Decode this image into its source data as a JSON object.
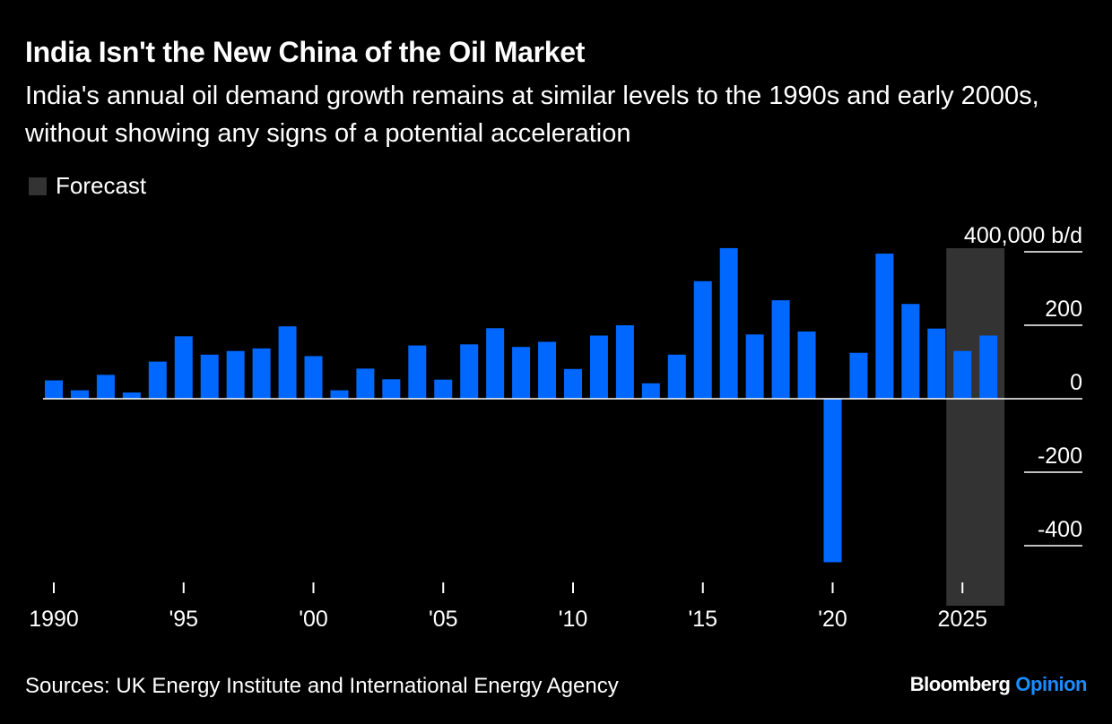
{
  "title": "India Isn't the New China of the Oil Market",
  "subtitle": "India's annual oil demand growth remains at similar levels to the 1990s and early 2000s, without showing any signs of a potential acceleration",
  "source": "Sources: UK Energy Institute and International Energy Agency",
  "brand": {
    "name": "Bloomberg",
    "section": "Opinion",
    "accent_color": "#1a8cff"
  },
  "colors": {
    "bar": "#0068ff",
    "forecast_band": "#333333",
    "grid": "#ffffff",
    "background": "#000000"
  },
  "chart_data": {
    "type": "bar",
    "x": [
      1990,
      1991,
      1992,
      1993,
      1994,
      1995,
      1996,
      1997,
      1998,
      1999,
      2000,
      2001,
      2002,
      2003,
      2004,
      2005,
      2006,
      2007,
      2008,
      2009,
      2010,
      2011,
      2012,
      2013,
      2014,
      2015,
      2016,
      2017,
      2018,
      2019,
      2020,
      2021,
      2022,
      2023,
      2024,
      2025,
      2026
    ],
    "values": [
      50,
      23,
      65,
      17,
      101,
      170,
      120,
      130,
      137,
      197,
      116,
      23,
      82,
      53,
      145,
      52,
      148,
      192,
      141,
      155,
      81,
      172,
      200,
      42,
      120,
      320,
      410,
      175,
      268,
      183,
      -445,
      125,
      395,
      258,
      191,
      130,
      172
    ],
    "ylim": [
      -500,
      400
    ],
    "yticks": [
      400,
      200,
      0,
      -200,
      -400
    ],
    "ytick_labels": [
      "400,000 b/d",
      "200",
      "0",
      "-200",
      "-400"
    ],
    "xticks": [
      1990,
      1995,
      2000,
      2005,
      2010,
      2015,
      2020,
      2025
    ],
    "xtick_labels": [
      "1990",
      "'95",
      "'00",
      "'05",
      "'10",
      "'15",
      "'20",
      "2025"
    ],
    "forecast_range": [
      2025,
      2026
    ],
    "legend": {
      "label": "Forecast",
      "placement": "top-left"
    },
    "grid": true
  }
}
